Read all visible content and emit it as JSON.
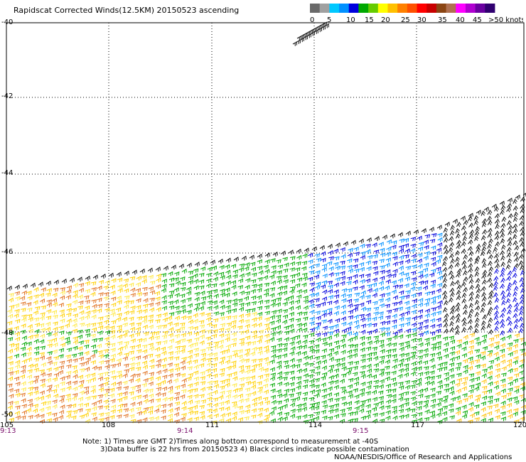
{
  "title": "Rapidscat Corrected Winds(12.5KM) 20150523 ascending",
  "color_scale": {
    "ticks": [
      "0",
      "5",
      "10",
      "15",
      "20",
      "25",
      "30",
      "35",
      "40",
      "45",
      ">50 knots"
    ],
    "colors": [
      "#6a6a6a",
      "#a0a0a0",
      "#00c8ff",
      "#0090ff",
      "#0000dd",
      "#00a800",
      "#66cc00",
      "#ffff00",
      "#ffc000",
      "#ff8000",
      "#ff5000",
      "#ff0000",
      "#c80000",
      "#8b4513",
      "#b07050",
      "#ff00ff",
      "#b000d0",
      "#6a00a0",
      "#300070"
    ]
  },
  "map": {
    "lon_ticks": [
      "105",
      "108",
      "111",
      "114",
      "117",
      "120"
    ],
    "lat_ticks": [
      "-40",
      "-42",
      "-44",
      "-46",
      "-48",
      "-50"
    ],
    "time_ticks": [
      "9:13",
      "9:14",
      "9:15"
    ],
    "lon_range": [
      105,
      120
    ],
    "lat_range": [
      -50,
      -40
    ],
    "grid": "dotted"
  },
  "notes": [
    "Note: 1) Times are GMT 2)Times along bottom correspond to measurement at -40S",
    "3)Data buffer is 22 hrs from 20150523 4) Black circles indicate possible contamination",
    "NOAA/NESDIS/Office of Research and Applications"
  ]
}
